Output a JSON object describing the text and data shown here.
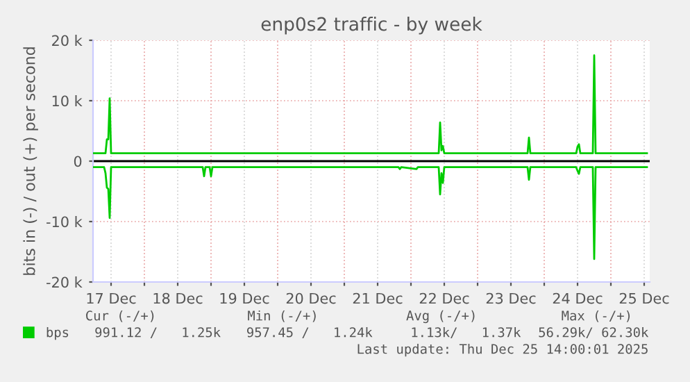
{
  "chart_data": {
    "type": "line",
    "title": "enp0s2 traffic - by week",
    "ylabel": "bits in (-) / out (+) per second",
    "xlim": [
      "2025-12-17T05:30",
      "2025-12-25T14:00"
    ],
    "xticks": [
      {
        "value": "2025-12-17T12:00",
        "label": "17 Dec"
      },
      {
        "value": "2025-12-18T00:00",
        "label": null
      },
      {
        "value": "2025-12-18T12:00",
        "label": "18 Dec"
      },
      {
        "value": "2025-12-19T00:00",
        "label": null
      },
      {
        "value": "2025-12-19T12:00",
        "label": "19 Dec"
      },
      {
        "value": "2025-12-20T00:00",
        "label": null
      },
      {
        "value": "2025-12-20T12:00",
        "label": "20 Dec"
      },
      {
        "value": "2025-12-21T00:00",
        "label": null
      },
      {
        "value": "2025-12-21T12:00",
        "label": "21 Dec"
      },
      {
        "value": "2025-12-22T00:00",
        "label": null
      },
      {
        "value": "2025-12-22T12:00",
        "label": "22 Dec"
      },
      {
        "value": "2025-12-23T00:00",
        "label": null
      },
      {
        "value": "2025-12-23T12:00",
        "label": "23 Dec"
      },
      {
        "value": "2025-12-24T00:00",
        "label": null
      },
      {
        "value": "2025-12-24T12:00",
        "label": "24 Dec"
      },
      {
        "value": "2025-12-25T00:00",
        "label": null
      },
      {
        "value": "2025-12-25T12:00",
        "label": "25 Dec"
      }
    ],
    "ylim": [
      -20000,
      20000
    ],
    "yticks": [
      {
        "value": -20000,
        "label": "-20 k"
      },
      {
        "value": -10000,
        "label": "-10 k"
      },
      0,
      {
        "value": 10000,
        "label": "10 k"
      },
      {
        "value": 20000,
        "label": "20 k"
      }
    ],
    "grid": true,
    "legend": "bottom left",
    "line_style": "solid",
    "marker": "none",
    "ref_lines": [
      {
        "axis": "y",
        "value": 0,
        "color": "#000000"
      }
    ],
    "series": [
      {
        "name": "bps",
        "color": "#00cc00",
        "x": [
          "2025-12-17T05:30",
          "2025-12-17T10:00",
          "2025-12-17T10:30",
          "2025-12-17T11:00",
          "2025-12-17T11:30",
          "2025-12-17T12:00",
          "2025-12-22T10:00",
          "2025-12-22T10:30",
          "2025-12-22T11:00",
          "2025-12-22T11:30",
          "2025-12-22T12:00",
          "2025-12-23T18:00",
          "2025-12-23T18:30",
          "2025-12-23T19:00",
          "2025-12-24T11:30",
          "2025-12-24T12:00",
          "2025-12-24T12:30",
          "2025-12-24T13:00",
          "2025-12-24T17:30",
          "2025-12-24T18:00",
          "2025-12-24T18:30",
          "2025-12-25T13:00"
        ],
        "values": [
          1300,
          1300,
          3600,
          3600,
          10400,
          1300,
          1300,
          6400,
          1800,
          2500,
          1300,
          1300,
          3900,
          1300,
          1300,
          2400,
          2800,
          1300,
          1300,
          17500,
          1300,
          1300
        ]
      },
      {
        "color": "#00cc00",
        "x": [
          "2025-12-17T05:30",
          "2025-12-17T09:30",
          "2025-12-17T10:00",
          "2025-12-17T10:30",
          "2025-12-17T11:00",
          "2025-12-17T11:30",
          "2025-12-17T12:00",
          "2025-12-18T21:00",
          "2025-12-18T21:30",
          "2025-12-18T22:00",
          "2025-12-18T23:30",
          "2025-12-19T00:00",
          "2025-12-19T00:30",
          "2025-12-21T19:30",
          "2025-12-21T20:00",
          "2025-12-21T20:30",
          "2025-12-22T02:00",
          "2025-12-22T02:30",
          "2025-12-22T10:00",
          "2025-12-22T10:30",
          "2025-12-22T11:00",
          "2025-12-22T11:30",
          "2025-12-22T12:00",
          "2025-12-23T18:00",
          "2025-12-23T18:30",
          "2025-12-23T19:00",
          "2025-12-24T11:30",
          "2025-12-24T12:00",
          "2025-12-24T12:30",
          "2025-12-24T13:00",
          "2025-12-24T17:30",
          "2025-12-24T18:00",
          "2025-12-24T18:30",
          "2025-12-25T13:00"
        ],
        "values": [
          -1000,
          -1000,
          -2000,
          -4400,
          -4600,
          -9400,
          -1000,
          -1000,
          -2500,
          -1000,
          -1000,
          -2500,
          -1000,
          -1000,
          -1300,
          -1000,
          -1300,
          -1000,
          -1000,
          -5500,
          -2000,
          -3600,
          -1000,
          -1000,
          -3100,
          -1000,
          -1000,
          -1600,
          -2100,
          -1000,
          -1000,
          -16200,
          -1000,
          -1000
        ]
      }
    ],
    "annotations": [
      "Cur (-/+)",
      "Min (-/+)",
      "Avg (-/+)",
      "Max (-/+)",
      "991.12 /   1.25k",
      "957.45 /   1.24k",
      "1.13k/   1.37k",
      "56.29k/ 62.30k",
      "Last update: Thu Dec 25 14:00:01 2025"
    ]
  }
}
